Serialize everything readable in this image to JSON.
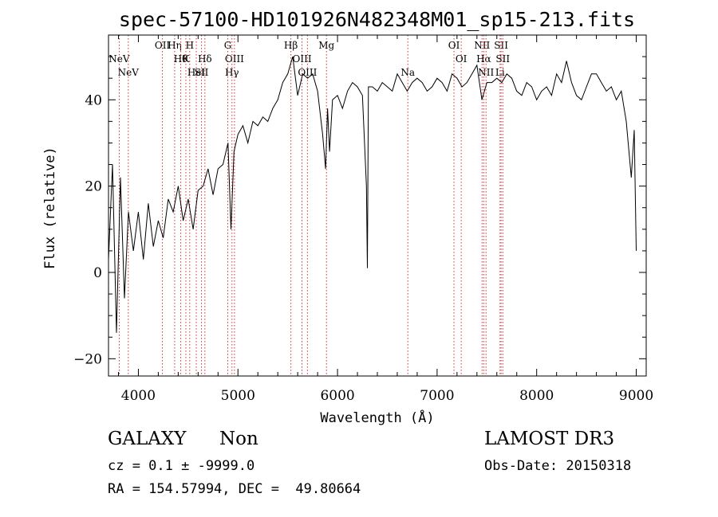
{
  "chart_data": {
    "type": "line",
    "title": "spec-57100-HD101926N482348M01_sp15-213.fits",
    "xlabel": "Wavelength (Å)",
    "ylabel": "Flux (relative)",
    "xlim": [
      3700,
      9100
    ],
    "ylim": [
      -24,
      55
    ],
    "xticks": [
      4000,
      5000,
      6000,
      7000,
      8000,
      9000
    ],
    "yticks": [
      -20,
      0,
      20,
      40
    ],
    "series": [
      {
        "name": "spectrum",
        "color": "#000000",
        "x": [
          3700,
          3740,
          3780,
          3820,
          3860,
          3900,
          3950,
          4000,
          4050,
          4100,
          4150,
          4200,
          4250,
          4300,
          4350,
          4400,
          4450,
          4500,
          4550,
          4600,
          4650,
          4700,
          4750,
          4800,
          4850,
          4900,
          4930,
          4960,
          5000,
          5050,
          5100,
          5150,
          5200,
          5250,
          5300,
          5350,
          5400,
          5450,
          5500,
          5550,
          5600,
          5650,
          5700,
          5750,
          5800,
          5850,
          5880,
          5900,
          5920,
          5950,
          6000,
          6050,
          6100,
          6150,
          6200,
          6250,
          6290,
          6300,
          6310,
          6350,
          6400,
          6450,
          6500,
          6550,
          6600,
          6650,
          6700,
          6750,
          6800,
          6850,
          6900,
          6950,
          7000,
          7050,
          7100,
          7150,
          7200,
          7250,
          7300,
          7350,
          7400,
          7450,
          7500,
          7550,
          7600,
          7650,
          7700,
          7750,
          7800,
          7850,
          7900,
          7950,
          8000,
          8050,
          8100,
          8150,
          8200,
          8250,
          8300,
          8350,
          8400,
          8450,
          8500,
          8550,
          8600,
          8650,
          8700,
          8750,
          8800,
          8850,
          8900,
          8950,
          8980,
          9000
        ],
        "y": [
          3,
          25,
          -14,
          22,
          -6,
          14,
          5,
          14,
          3,
          16,
          6,
          12,
          8,
          17,
          14,
          20,
          12,
          17,
          10,
          19,
          20,
          24,
          18,
          24,
          25,
          30,
          10,
          28,
          32,
          34,
          30,
          35,
          34,
          36,
          35,
          38,
          40,
          44,
          46,
          50,
          41,
          46,
          45,
          46,
          42,
          32,
          24,
          38,
          28,
          40,
          41,
          38,
          42,
          44,
          43,
          41,
          20,
          1,
          43,
          43,
          42,
          44,
          43,
          42,
          46,
          44,
          42,
          44,
          45,
          44,
          42,
          43,
          45,
          44,
          42,
          46,
          45,
          43,
          44,
          46,
          48,
          40,
          44,
          44,
          45,
          44,
          46,
          45,
          42,
          41,
          44,
          43,
          40,
          42,
          43,
          41,
          46,
          44,
          49,
          44,
          41,
          40,
          43,
          46,
          46,
          44,
          42,
          43,
          40,
          42,
          35,
          22,
          33,
          5
        ]
      }
    ],
    "lines": [
      {
        "label": "NeV",
        "wave": 3346,
        "row": 2
      },
      {
        "label": "NeV",
        "wave": 3426,
        "row": 3
      },
      {
        "label": "OII",
        "wave": 3727,
        "row": 1
      },
      {
        "label": "Hη",
        "wave": 3835,
        "row": 1
      },
      {
        "label": "Hθ",
        "wave": 3889,
        "row": 2
      },
      {
        "label": "H",
        "wave": 3968,
        "row": 1
      },
      {
        "label": "K",
        "wave": 3934,
        "row": 2
      },
      {
        "label": "HeI",
        "wave": 4026,
        "row": 3
      },
      {
        "label": "Hδ",
        "wave": 4102,
        "row": 2
      },
      {
        "label": "SII",
        "wave": 4072,
        "row": 3
      },
      {
        "label": "G",
        "wave": 4304,
        "row": 1
      },
      {
        "label": "OIII",
        "wave": 4363,
        "row": 2
      },
      {
        "label": "Hγ",
        "wave": 4341,
        "row": 3
      },
      {
        "label": "Hβ",
        "wave": 4861,
        "row": 1
      },
      {
        "label": "OIII",
        "wave": 4959,
        "row": 2
      },
      {
        "label": "OIII",
        "wave": 5007,
        "row": 3
      },
      {
        "label": "Mg",
        "wave": 5175,
        "row": 1
      },
      {
        "label": "Na",
        "wave": 5893,
        "row": 3
      },
      {
        "label": "OI",
        "wave": 6300,
        "row": 1
      },
      {
        "label": "OI",
        "wave": 6364,
        "row": 2
      },
      {
        "label": "NII",
        "wave": 6548,
        "row": 1
      },
      {
        "label": "Hα",
        "wave": 6563,
        "row": 2
      },
      {
        "label": "NII",
        "wave": 6583,
        "row": 3
      },
      {
        "label": "SII",
        "wave": 6716,
        "row": 1
      },
      {
        "label": "SII",
        "wave": 6731,
        "row": 2
      },
      {
        "label": "Li",
        "wave": 6707,
        "row": 3
      }
    ],
    "redshift_display": 0.1
  },
  "footer": {
    "class_label": "GALAXY",
    "subclass_label": "Non",
    "survey_label": "LAMOST DR3",
    "cz_line": "cz = 0.1 ± -9999.0",
    "obs_date_line": "Obs-Date: 20150318",
    "radec_line": "RA = 154.57994, DEC =  49.80664"
  },
  "colors": {
    "line_marker": "#cc3333",
    "axis": "#000000",
    "spectrum": "#000000"
  }
}
